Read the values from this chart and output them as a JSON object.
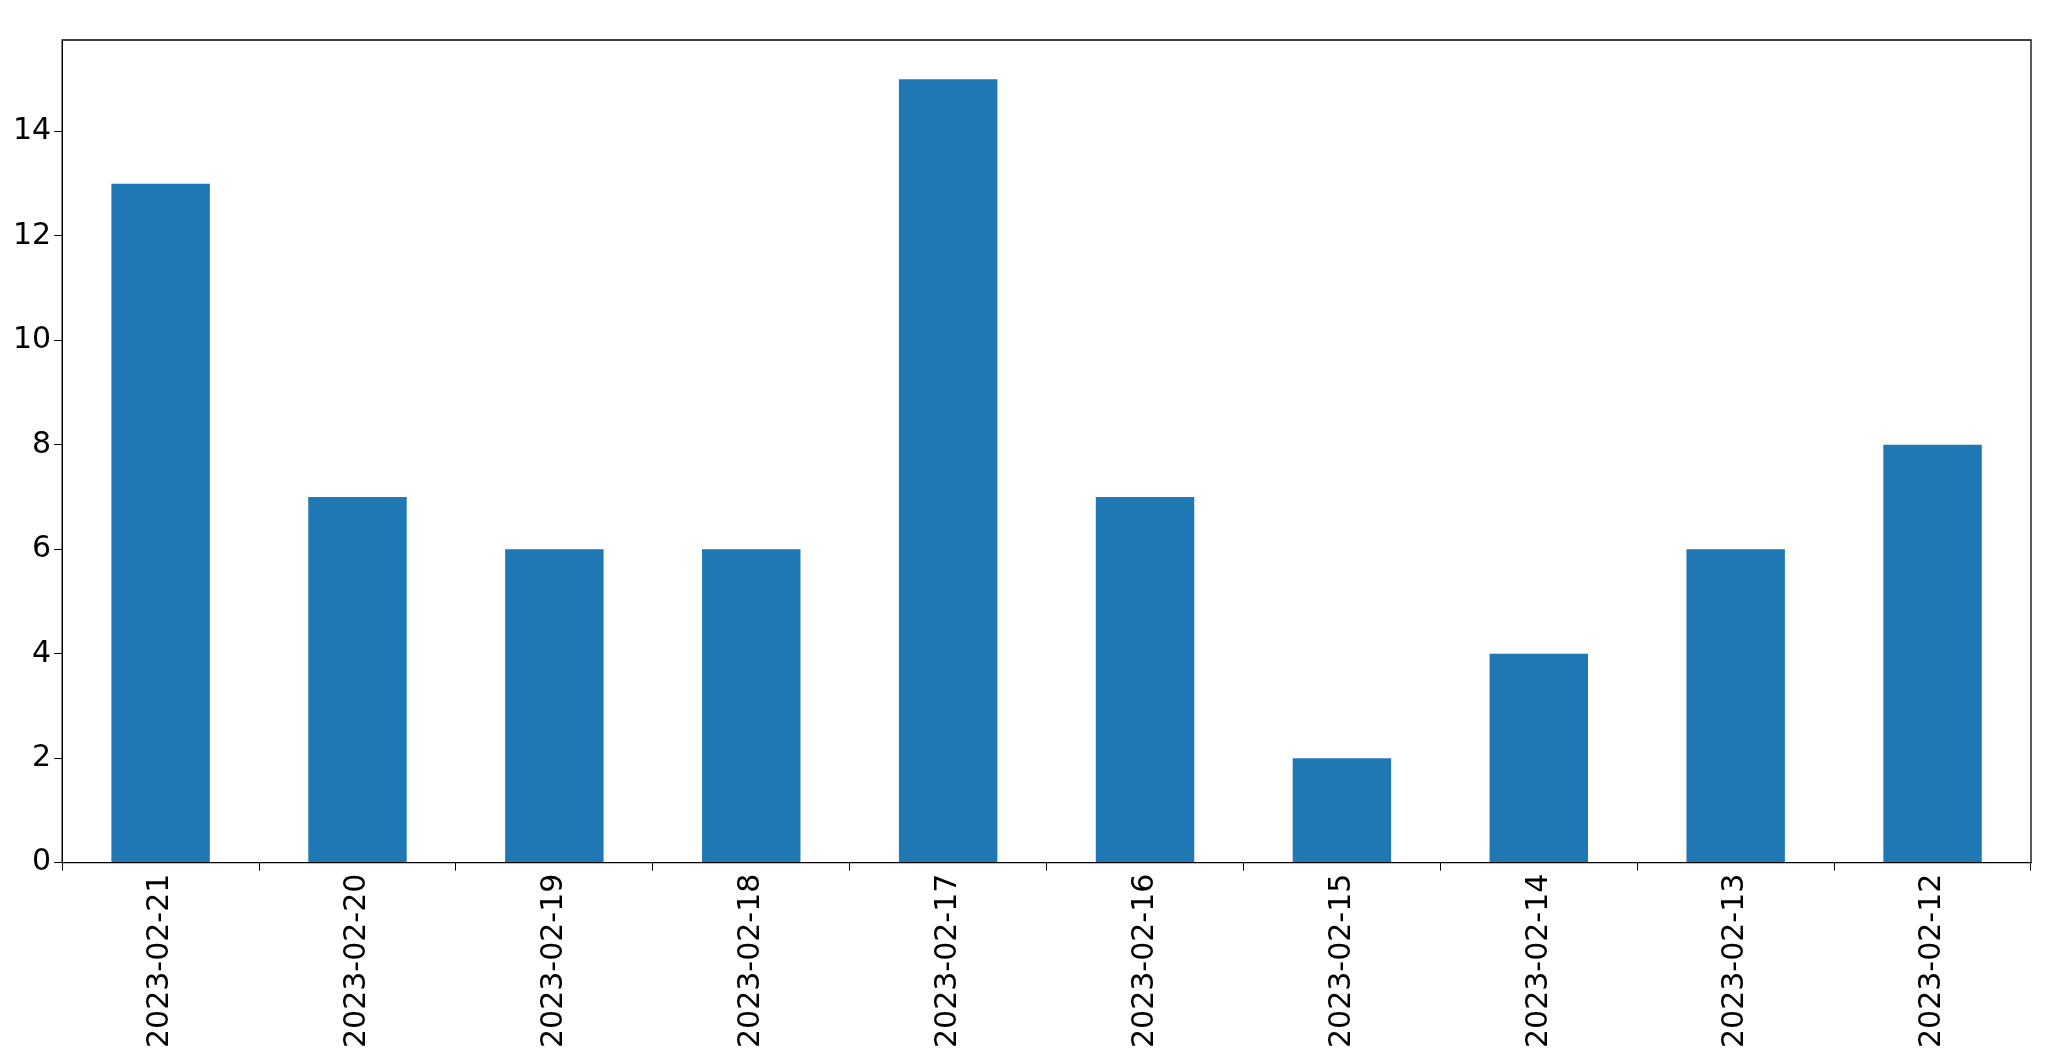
{
  "chart_data": {
    "type": "bar",
    "categories": [
      "2023-02-21",
      "2023-02-20",
      "2023-02-19",
      "2023-02-18",
      "2023-02-17",
      "2023-02-16",
      "2023-02-15",
      "2023-02-14",
      "2023-02-13",
      "2023-02-12"
    ],
    "values": [
      13,
      7,
      6,
      6,
      15,
      7,
      2,
      4,
      6,
      8
    ],
    "color": "#1f77b4",
    "ylim": [
      0,
      15.75
    ],
    "yticks": [
      0,
      2,
      4,
      6,
      8,
      10,
      12,
      14
    ],
    "grid": false
  }
}
